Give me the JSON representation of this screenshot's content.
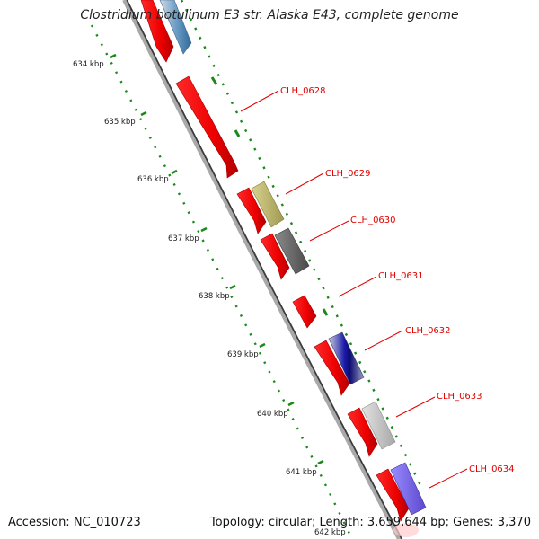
{
  "title": "Clostridium botulinum E3 str. Alaska E43, complete genome",
  "footer": {
    "accession": "Accession: NC_010723",
    "summary": "Topology: circular; Length: 3,659,644 bp; Genes: 3,370"
  },
  "ruler_labels": [
    "634 kbp",
    "635 kbp",
    "636 kbp",
    "637 kbp",
    "638 kbp",
    "639 kbp",
    "640 kbp",
    "641 kbp",
    "642 kbp"
  ],
  "gene_labels": [
    "CLH_0628",
    "CLH_0629",
    "CLH_0630",
    "CLH_0631",
    "CLH_0632",
    "CLH_0633",
    "CLH_0634"
  ],
  "colors": {
    "cds": "#ff1414",
    "backbone": "#808080",
    "ruler_dots": "#1a8a1a",
    "label": "#e00000"
  }
}
